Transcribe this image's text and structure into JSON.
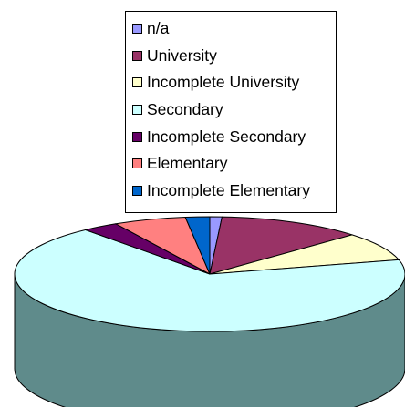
{
  "chart_data": {
    "type": "pie",
    "subtype": "3d-pie",
    "title": "",
    "legend_position": "top",
    "categories": [
      "n/a",
      "University",
      "Incomplete University",
      "Secondary",
      "Incomplete Secondary",
      "Elementary",
      "Incomplete Elementary"
    ],
    "values": [
      1,
      12,
      8,
      68,
      3,
      6,
      2
    ],
    "colors": [
      "#9999ff",
      "#993366",
      "#ffffcc",
      "#ccffff",
      "#660066",
      "#ff8080",
      "#0066cc"
    ],
    "side_colors": [
      "#5c5c99",
      "#5c1f3d",
      "#99997a",
      "#5f8b8b",
      "#3d003d",
      "#994d4d",
      "#003d7a"
    ]
  }
}
